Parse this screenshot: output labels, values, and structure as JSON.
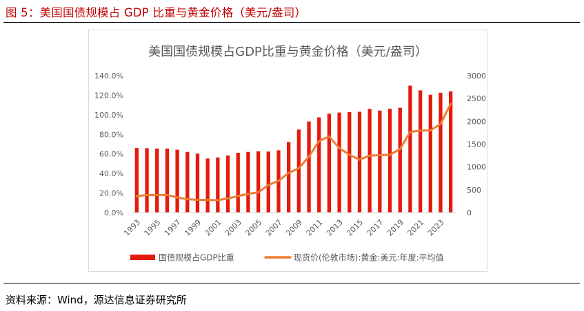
{
  "figure": {
    "title": "图 5：美国国债规模占 GDP 比重与黄金价格（美元/盎司）",
    "source": "资料来源：Wind，源达信息证券研究所"
  },
  "colors": {
    "title_red": "#c00000",
    "bar_red": "#e31b0c",
    "line_orange": "#ed7d31",
    "axis_text": "#595959"
  },
  "chart_data": {
    "type": "bar+line",
    "title": "美国国债规模占GDP比重与黄金价格（美元/盎司）",
    "grid": false,
    "legend_position": "bottom",
    "years": [
      1993,
      1994,
      1995,
      1996,
      1997,
      1998,
      1999,
      2000,
      2001,
      2002,
      2003,
      2004,
      2005,
      2006,
      2007,
      2008,
      2009,
      2010,
      2011,
      2012,
      2013,
      2014,
      2015,
      2016,
      2017,
      2018,
      2019,
      2020,
      2021,
      2022,
      2023,
      2024
    ],
    "x_tick_labels": [
      "1993",
      "1995",
      "1997",
      "1999",
      "2001",
      "2003",
      "2005",
      "2007",
      "2009",
      "2011",
      "2013",
      "2015",
      "2017",
      "2019",
      "2021",
      "2023"
    ],
    "y_left": {
      "lim": [
        0,
        140
      ],
      "tick_labels": [
        "0.0%",
        "20.0%",
        "40.0%",
        "60.0%",
        "80.0%",
        "100.0%",
        "120.0%",
        "140.0%"
      ]
    },
    "y_right": {
      "lim": [
        0,
        3000
      ],
      "tick_labels": [
        "0",
        "500",
        "1000",
        "1500",
        "2000",
        "2500",
        "3000"
      ]
    },
    "series": [
      {
        "name": "国债规模占GDP比重",
        "type": "bar",
        "axis": "left",
        "unit": "%",
        "values": [
          66.1,
          65.9,
          65.5,
          65.5,
          64.3,
          62.1,
          60.3,
          55.3,
          56.4,
          58.4,
          61.2,
          62.1,
          62.6,
          62.4,
          63.7,
          72.2,
          84.9,
          93.1,
          97.4,
          101.1,
          102.3,
          102.7,
          103.1,
          106.0,
          104.3,
          106.2,
          107.2,
          129.8,
          125.0,
          120.5,
          122.5,
          124.0
        ]
      },
      {
        "name": "现货价(伦敦市场):黄金:美元:年度:平均值",
        "type": "line",
        "axis": "right",
        "values": [
          360,
          384,
          384,
          388,
          331,
          294,
          279,
          279,
          271,
          310,
          363,
          409,
          444,
          604,
          695,
          872,
          972,
          1225,
          1569,
          1669,
          1411,
          1266,
          1160,
          1251,
          1257,
          1268,
          1393,
          1770,
          1799,
          1801,
          1943,
          2386
        ]
      }
    ]
  }
}
